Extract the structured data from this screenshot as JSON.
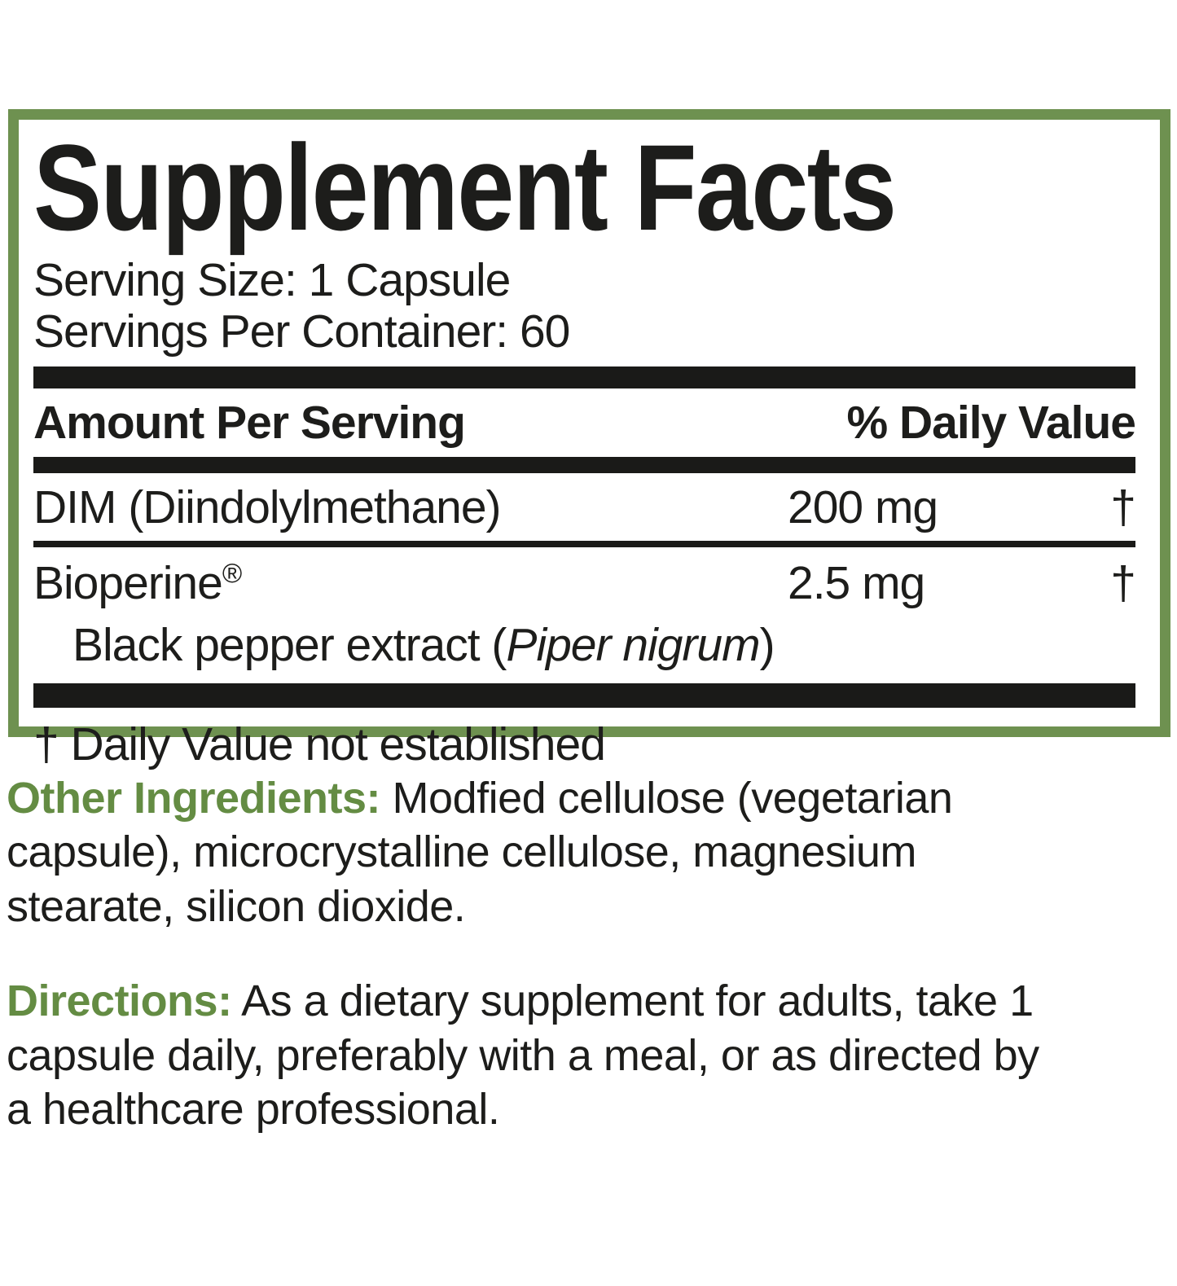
{
  "title": "Supplement Facts",
  "serving": {
    "size_line": "Serving Size: 1 Capsule",
    "container_line": "Servings Per Container: 60"
  },
  "table": {
    "header": {
      "amount_label": "Amount Per Serving",
      "daily_value_label": "% Daily Value"
    },
    "rows": [
      {
        "name": "DIM (Diindolylmethane)",
        "amount": "200 mg",
        "dv": "†"
      },
      {
        "name": "Bioperine",
        "name_sup": "®",
        "amount": "2.5 mg",
        "dv": "†",
        "sub_prefix": "Black pepper extract (",
        "sub_italic": "Piper nigrum",
        "sub_suffix": ")"
      }
    ],
    "footnote": "† Daily Value not established"
  },
  "other_ingredients": {
    "label": "Other Ingredients:",
    "line1_rest": " Modfied cellulose (vegetarian",
    "line2": "capsule), microcrystalline cellulose, magnesium",
    "line3": "stearate, silicon dioxide."
  },
  "directions": {
    "label": "Directions:",
    "line1_rest": " As a dietary supplement for adults, take 1",
    "line2": "capsule daily, preferably with a meal, or as directed by",
    "line3": "a healthcare professional."
  },
  "colors": {
    "border_green": "#6e9150",
    "text_green": "#648c43",
    "text_black": "#1d1d1b",
    "bar_black": "#1a1a18"
  }
}
